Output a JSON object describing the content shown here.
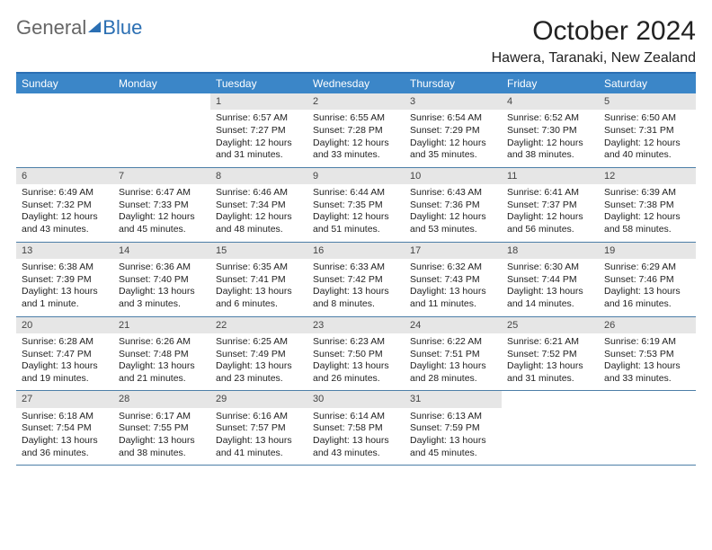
{
  "logo": {
    "text1": "General",
    "text2": "Blue"
  },
  "title": "October 2024",
  "location": "Hawera, Taranaki, New Zealand",
  "colors": {
    "header_bar": "#3b86c8",
    "accent_rule": "#2b6fb3",
    "row_rule": "#4d7fa8",
    "daynum_bg": "#e6e6e6",
    "text": "#222222",
    "logo_gray": "#666666"
  },
  "day_names": [
    "Sunday",
    "Monday",
    "Tuesday",
    "Wednesday",
    "Thursday",
    "Friday",
    "Saturday"
  ],
  "leading_blanks": 2,
  "days": [
    {
      "n": 1,
      "sunrise": "6:57 AM",
      "sunset": "7:27 PM",
      "daylight": "12 hours and 31 minutes."
    },
    {
      "n": 2,
      "sunrise": "6:55 AM",
      "sunset": "7:28 PM",
      "daylight": "12 hours and 33 minutes."
    },
    {
      "n": 3,
      "sunrise": "6:54 AM",
      "sunset": "7:29 PM",
      "daylight": "12 hours and 35 minutes."
    },
    {
      "n": 4,
      "sunrise": "6:52 AM",
      "sunset": "7:30 PM",
      "daylight": "12 hours and 38 minutes."
    },
    {
      "n": 5,
      "sunrise": "6:50 AM",
      "sunset": "7:31 PM",
      "daylight": "12 hours and 40 minutes."
    },
    {
      "n": 6,
      "sunrise": "6:49 AM",
      "sunset": "7:32 PM",
      "daylight": "12 hours and 43 minutes."
    },
    {
      "n": 7,
      "sunrise": "6:47 AM",
      "sunset": "7:33 PM",
      "daylight": "12 hours and 45 minutes."
    },
    {
      "n": 8,
      "sunrise": "6:46 AM",
      "sunset": "7:34 PM",
      "daylight": "12 hours and 48 minutes."
    },
    {
      "n": 9,
      "sunrise": "6:44 AM",
      "sunset": "7:35 PM",
      "daylight": "12 hours and 51 minutes."
    },
    {
      "n": 10,
      "sunrise": "6:43 AM",
      "sunset": "7:36 PM",
      "daylight": "12 hours and 53 minutes."
    },
    {
      "n": 11,
      "sunrise": "6:41 AM",
      "sunset": "7:37 PM",
      "daylight": "12 hours and 56 minutes."
    },
    {
      "n": 12,
      "sunrise": "6:39 AM",
      "sunset": "7:38 PM",
      "daylight": "12 hours and 58 minutes."
    },
    {
      "n": 13,
      "sunrise": "6:38 AM",
      "sunset": "7:39 PM",
      "daylight": "13 hours and 1 minute."
    },
    {
      "n": 14,
      "sunrise": "6:36 AM",
      "sunset": "7:40 PM",
      "daylight": "13 hours and 3 minutes."
    },
    {
      "n": 15,
      "sunrise": "6:35 AM",
      "sunset": "7:41 PM",
      "daylight": "13 hours and 6 minutes."
    },
    {
      "n": 16,
      "sunrise": "6:33 AM",
      "sunset": "7:42 PM",
      "daylight": "13 hours and 8 minutes."
    },
    {
      "n": 17,
      "sunrise": "6:32 AM",
      "sunset": "7:43 PM",
      "daylight": "13 hours and 11 minutes."
    },
    {
      "n": 18,
      "sunrise": "6:30 AM",
      "sunset": "7:44 PM",
      "daylight": "13 hours and 14 minutes."
    },
    {
      "n": 19,
      "sunrise": "6:29 AM",
      "sunset": "7:46 PM",
      "daylight": "13 hours and 16 minutes."
    },
    {
      "n": 20,
      "sunrise": "6:28 AM",
      "sunset": "7:47 PM",
      "daylight": "13 hours and 19 minutes."
    },
    {
      "n": 21,
      "sunrise": "6:26 AM",
      "sunset": "7:48 PM",
      "daylight": "13 hours and 21 minutes."
    },
    {
      "n": 22,
      "sunrise": "6:25 AM",
      "sunset": "7:49 PM",
      "daylight": "13 hours and 23 minutes."
    },
    {
      "n": 23,
      "sunrise": "6:23 AM",
      "sunset": "7:50 PM",
      "daylight": "13 hours and 26 minutes."
    },
    {
      "n": 24,
      "sunrise": "6:22 AM",
      "sunset": "7:51 PM",
      "daylight": "13 hours and 28 minutes."
    },
    {
      "n": 25,
      "sunrise": "6:21 AM",
      "sunset": "7:52 PM",
      "daylight": "13 hours and 31 minutes."
    },
    {
      "n": 26,
      "sunrise": "6:19 AM",
      "sunset": "7:53 PM",
      "daylight": "13 hours and 33 minutes."
    },
    {
      "n": 27,
      "sunrise": "6:18 AM",
      "sunset": "7:54 PM",
      "daylight": "13 hours and 36 minutes."
    },
    {
      "n": 28,
      "sunrise": "6:17 AM",
      "sunset": "7:55 PM",
      "daylight": "13 hours and 38 minutes."
    },
    {
      "n": 29,
      "sunrise": "6:16 AM",
      "sunset": "7:57 PM",
      "daylight": "13 hours and 41 minutes."
    },
    {
      "n": 30,
      "sunrise": "6:14 AM",
      "sunset": "7:58 PM",
      "daylight": "13 hours and 43 minutes."
    },
    {
      "n": 31,
      "sunrise": "6:13 AM",
      "sunset": "7:59 PM",
      "daylight": "13 hours and 45 minutes."
    }
  ],
  "labels": {
    "sunrise": "Sunrise:",
    "sunset": "Sunset:",
    "daylight": "Daylight:"
  }
}
